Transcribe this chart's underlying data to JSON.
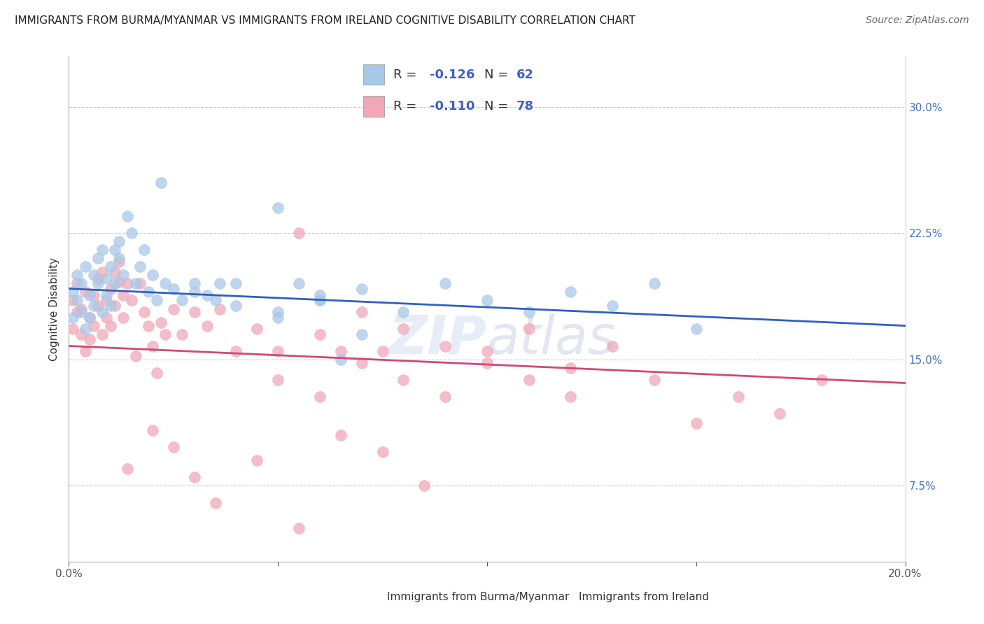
{
  "title": "IMMIGRANTS FROM BURMA/MYANMAR VS IMMIGRANTS FROM IRELAND COGNITIVE DISABILITY CORRELATION CHART",
  "source": "Source: ZipAtlas.com",
  "xlabel_blue": "Immigrants from Burma/Myanmar",
  "xlabel_pink": "Immigrants from Ireland",
  "ylabel": "Cognitive Disability",
  "xlim": [
    0.0,
    0.2
  ],
  "ylim": [
    0.03,
    0.33
  ],
  "blue_R": -0.126,
  "blue_N": 62,
  "pink_R": -0.11,
  "pink_N": 78,
  "blue_color": "#a8c8e8",
  "pink_color": "#f0a8b8",
  "blue_line_color": "#3060c0",
  "pink_line_color": "#d04878",
  "legend_value_color": "#4060c8",
  "background_color": "#ffffff",
  "watermark": "ZIPatlas",
  "blue_scatter_x": [
    0.001,
    0.001,
    0.002,
    0.002,
    0.003,
    0.003,
    0.004,
    0.004,
    0.005,
    0.005,
    0.006,
    0.006,
    0.007,
    0.007,
    0.008,
    0.008,
    0.009,
    0.009,
    0.01,
    0.01,
    0.011,
    0.011,
    0.012,
    0.012,
    0.013,
    0.014,
    0.015,
    0.016,
    0.017,
    0.018,
    0.019,
    0.02,
    0.021,
    0.022,
    0.023,
    0.025,
    0.027,
    0.03,
    0.033,
    0.036,
    0.04,
    0.05,
    0.06,
    0.07,
    0.08,
    0.09,
    0.05,
    0.06,
    0.1,
    0.11,
    0.12,
    0.13,
    0.14,
    0.15,
    0.03,
    0.035,
    0.04,
    0.05,
    0.055,
    0.06,
    0.065,
    0.07
  ],
  "blue_scatter_y": [
    0.19,
    0.175,
    0.185,
    0.2,
    0.178,
    0.195,
    0.205,
    0.168,
    0.188,
    0.175,
    0.2,
    0.182,
    0.195,
    0.21,
    0.215,
    0.178,
    0.198,
    0.188,
    0.205,
    0.182,
    0.215,
    0.195,
    0.21,
    0.22,
    0.2,
    0.235,
    0.225,
    0.195,
    0.205,
    0.215,
    0.19,
    0.2,
    0.185,
    0.255,
    0.195,
    0.192,
    0.185,
    0.19,
    0.188,
    0.195,
    0.182,
    0.178,
    0.185,
    0.192,
    0.178,
    0.195,
    0.24,
    0.188,
    0.185,
    0.178,
    0.19,
    0.182,
    0.195,
    0.168,
    0.195,
    0.185,
    0.195,
    0.175,
    0.195,
    0.185,
    0.15,
    0.165
  ],
  "pink_scatter_x": [
    0.001,
    0.001,
    0.002,
    0.002,
    0.003,
    0.003,
    0.004,
    0.004,
    0.005,
    0.005,
    0.006,
    0.006,
    0.007,
    0.007,
    0.008,
    0.008,
    0.009,
    0.009,
    0.01,
    0.01,
    0.011,
    0.011,
    0.012,
    0.012,
    0.013,
    0.013,
    0.014,
    0.015,
    0.016,
    0.017,
    0.018,
    0.019,
    0.02,
    0.021,
    0.022,
    0.023,
    0.025,
    0.027,
    0.03,
    0.033,
    0.036,
    0.04,
    0.045,
    0.05,
    0.055,
    0.06,
    0.065,
    0.07,
    0.075,
    0.08,
    0.09,
    0.1,
    0.11,
    0.12,
    0.13,
    0.14,
    0.15,
    0.16,
    0.17,
    0.18,
    0.014,
    0.02,
    0.025,
    0.03,
    0.035,
    0.045,
    0.055,
    0.065,
    0.075,
    0.085,
    0.05,
    0.06,
    0.07,
    0.08,
    0.09,
    0.1,
    0.11,
    0.12
  ],
  "pink_scatter_y": [
    0.185,
    0.168,
    0.178,
    0.195,
    0.165,
    0.18,
    0.19,
    0.155,
    0.175,
    0.162,
    0.188,
    0.17,
    0.182,
    0.198,
    0.202,
    0.165,
    0.185,
    0.175,
    0.192,
    0.17,
    0.202,
    0.182,
    0.196,
    0.208,
    0.188,
    0.175,
    0.195,
    0.185,
    0.152,
    0.195,
    0.178,
    0.17,
    0.158,
    0.142,
    0.172,
    0.165,
    0.18,
    0.165,
    0.178,
    0.17,
    0.18,
    0.155,
    0.168,
    0.155,
    0.225,
    0.165,
    0.155,
    0.178,
    0.155,
    0.168,
    0.158,
    0.155,
    0.168,
    0.145,
    0.158,
    0.138,
    0.112,
    0.128,
    0.118,
    0.138,
    0.085,
    0.108,
    0.098,
    0.08,
    0.065,
    0.09,
    0.05,
    0.105,
    0.095,
    0.075,
    0.138,
    0.128,
    0.148,
    0.138,
    0.128,
    0.148,
    0.138,
    0.128
  ],
  "blue_line_start_y": 0.192,
  "blue_line_end_y": 0.17,
  "pink_line_start_y": 0.158,
  "pink_line_end_y": 0.136
}
